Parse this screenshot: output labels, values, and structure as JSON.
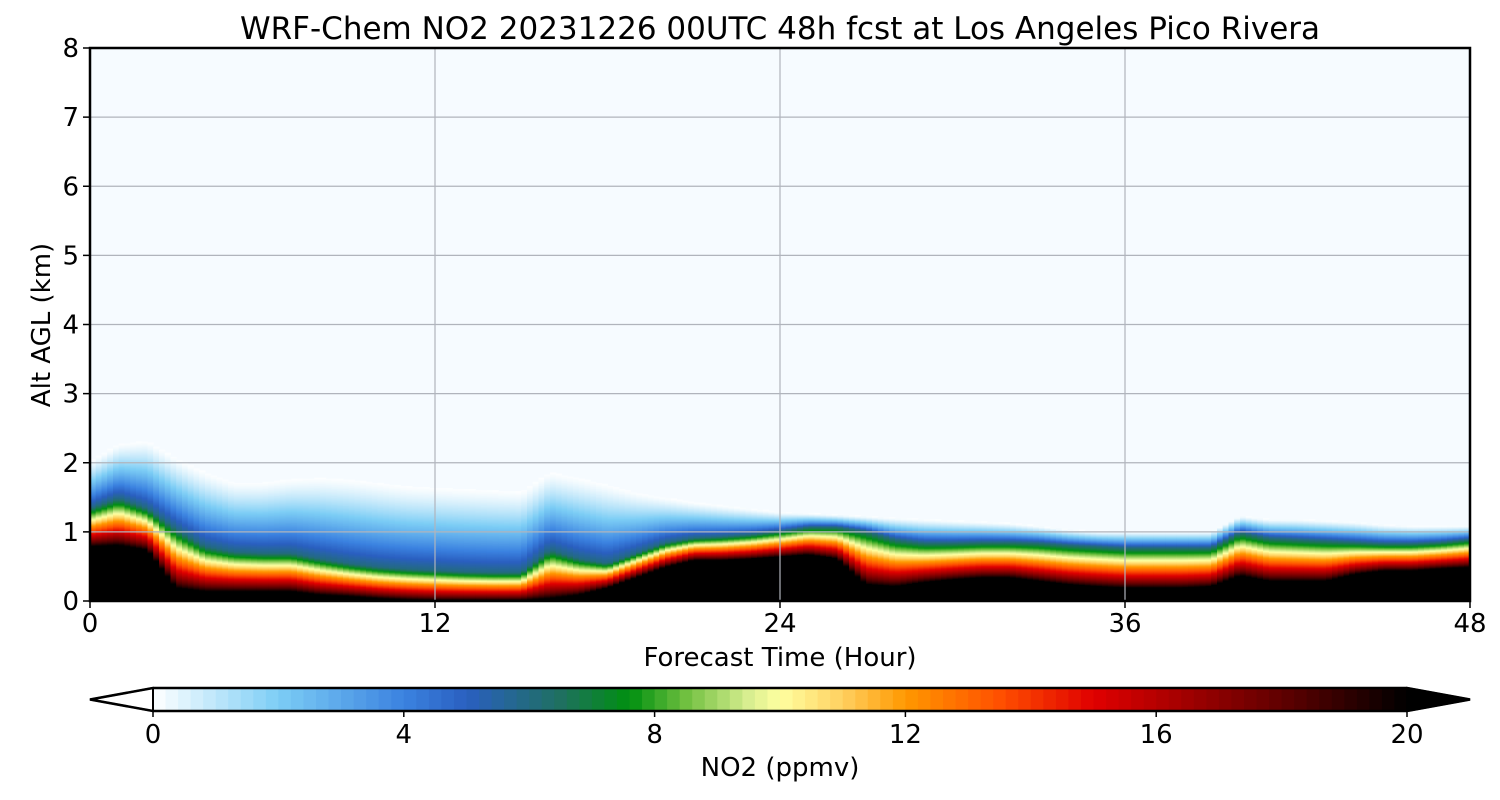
{
  "chart_data": {
    "type": "heatmap",
    "title": "WRF-Chem NO2  20231226 00UTC 48h fcst at Los Angeles Pico Rivera",
    "xlabel": "Forecast Time (Hour)",
    "ylabel": "Alt AGL (km)",
    "xlim": [
      0,
      48
    ],
    "ylim": [
      0,
      8
    ],
    "xticks": [
      0,
      12,
      24,
      36,
      48
    ],
    "yticks": [
      0,
      1,
      2,
      3,
      4,
      5,
      6,
      7,
      8
    ],
    "grid": true,
    "colorbar": {
      "label": "NO2  (ppmv)",
      "min": 0,
      "max": 20,
      "ticks": [
        0,
        4,
        8,
        12,
        16,
        20
      ],
      "extend": "both",
      "orientation": "horizontal",
      "colors": [
        {
          "value": 0,
          "color": "#ffffff"
        },
        {
          "value": 2,
          "color": "#7ccdf5"
        },
        {
          "value": 4,
          "color": "#3b82e0"
        },
        {
          "value": 5,
          "color": "#2a5fc0"
        },
        {
          "value": 6.5,
          "color": "#1f7060"
        },
        {
          "value": 7.6,
          "color": "#009010"
        },
        {
          "value": 8.5,
          "color": "#70c040"
        },
        {
          "value": 9.5,
          "color": "#d8ee90"
        },
        {
          "value": 10,
          "color": "#ffffa0"
        },
        {
          "value": 11,
          "color": "#ffd060"
        },
        {
          "value": 12,
          "color": "#ff9800"
        },
        {
          "value": 13.5,
          "color": "#ff5000"
        },
        {
          "value": 15,
          "color": "#e00000"
        },
        {
          "value": 16.5,
          "color": "#a00000"
        },
        {
          "value": 18,
          "color": "#600000"
        },
        {
          "value": 20,
          "color": "#000000"
        }
      ]
    },
    "field": {
      "description_units": "ppmv",
      "hours": [
        0,
        1,
        2,
        3,
        4,
        5,
        6,
        7,
        8,
        9,
        10,
        11,
        12,
        13,
        14,
        15,
        16,
        17,
        18,
        19,
        20,
        21,
        22,
        23,
        24,
        25,
        26,
        27,
        28,
        29,
        30,
        31,
        32,
        33,
        34,
        35,
        36,
        37,
        38,
        39,
        40,
        41,
        42,
        43,
        44,
        45,
        46,
        47,
        48
      ],
      "surface_value_km": [
        0.8,
        0.82,
        0.75,
        0.2,
        0.15,
        0.15,
        0.15,
        0.15,
        0.1,
        0.08,
        0.05,
        0.03,
        0.02,
        0.02,
        0.02,
        0.02,
        0.05,
        0.1,
        0.2,
        0.35,
        0.5,
        0.6,
        0.6,
        0.62,
        0.65,
        0.68,
        0.62,
        0.25,
        0.22,
        0.28,
        0.32,
        0.35,
        0.35,
        0.3,
        0.25,
        0.22,
        0.2,
        0.2,
        0.2,
        0.22,
        0.38,
        0.3,
        0.3,
        0.3,
        0.4,
        0.45,
        0.45,
        0.48,
        0.5
      ],
      "top_of_layer_km": [
        1.35,
        1.5,
        1.35,
        1.05,
        0.8,
        0.72,
        0.7,
        0.7,
        0.62,
        0.55,
        0.5,
        0.47,
        0.45,
        0.43,
        0.42,
        0.42,
        0.75,
        0.62,
        0.55,
        0.7,
        0.85,
        0.92,
        0.94,
        0.97,
        1.02,
        1.08,
        1.08,
        1.02,
        0.9,
        0.85,
        0.85,
        0.86,
        0.86,
        0.85,
        0.82,
        0.8,
        0.78,
        0.78,
        0.78,
        0.78,
        1.0,
        0.92,
        0.9,
        0.88,
        0.86,
        0.84,
        0.84,
        0.86,
        0.9
      ],
      "haze_top_km": [
        2.05,
        2.3,
        2.35,
        2.1,
        1.9,
        1.75,
        1.75,
        1.8,
        1.82,
        1.8,
        1.75,
        1.7,
        1.68,
        1.66,
        1.64,
        1.62,
        1.9,
        1.82,
        1.72,
        1.6,
        1.52,
        1.45,
        1.4,
        1.35,
        1.3,
        1.28,
        1.26,
        1.24,
        1.22,
        1.2,
        1.18,
        1.16,
        1.14,
        1.1,
        1.05,
        1.02,
        1.02,
        1.02,
        1.02,
        1.02,
        1.25,
        1.2,
        1.2,
        1.18,
        1.16,
        1.12,
        1.1,
        1.1,
        1.1
      ]
    }
  }
}
